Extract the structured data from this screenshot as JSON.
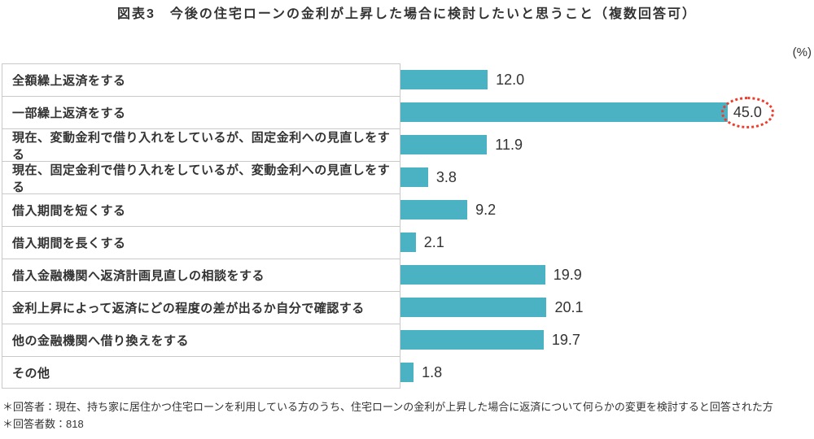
{
  "title": "図表3　今後の住宅ローンの金利が上昇した場合に検討したいと思うこと（複数回答可）",
  "unit_label": "(%)",
  "chart_data": {
    "type": "bar",
    "orientation": "horizontal",
    "title": "図表3　今後の住宅ローンの金利が上昇した場合に検討したいと思うこと（複数回答可）",
    "xlabel": "(%)",
    "ylabel": "",
    "xlim": [
      0,
      50
    ],
    "grid": false,
    "legend": false,
    "categories": [
      "全額繰上返済をする",
      "一部繰上返済をする",
      "現在、変動金利で借り入れをしているが、固定金利への見直しをする",
      "現在、固定金利で借り入れをしているが、変動金利への見直しをする",
      "借入期間を短くする",
      "借入期間を長くする",
      "借入金融機関へ返済計画見直しの相談をする",
      "金利上昇によって返済にどの程度の差が出るか自分で確認する",
      "他の金融機関へ借り換えをする",
      "その他"
    ],
    "values": [
      12.0,
      45.0,
      11.9,
      3.8,
      9.2,
      2.1,
      19.9,
      20.1,
      19.7,
      1.8
    ],
    "value_labels": [
      "12.0",
      "45.0",
      "11.9",
      "3.8",
      "9.2",
      "2.1",
      "19.9",
      "20.1",
      "19.7",
      "1.8"
    ],
    "highlighted_index": 1,
    "bar_color": "#4BB2C4",
    "highlight_circle_color": "#EE3B2A",
    "annotation": "45.0 is circled with a red dotted ellipse"
  },
  "footnotes": [
    "＊回答者：現在、持ち家に居住かつ住宅ローンを利用している方のうち、住宅ローンの金利が上昇した場合に返済について何らかの変更を検討すると回答された方",
    "＊回答者数：818"
  ]
}
